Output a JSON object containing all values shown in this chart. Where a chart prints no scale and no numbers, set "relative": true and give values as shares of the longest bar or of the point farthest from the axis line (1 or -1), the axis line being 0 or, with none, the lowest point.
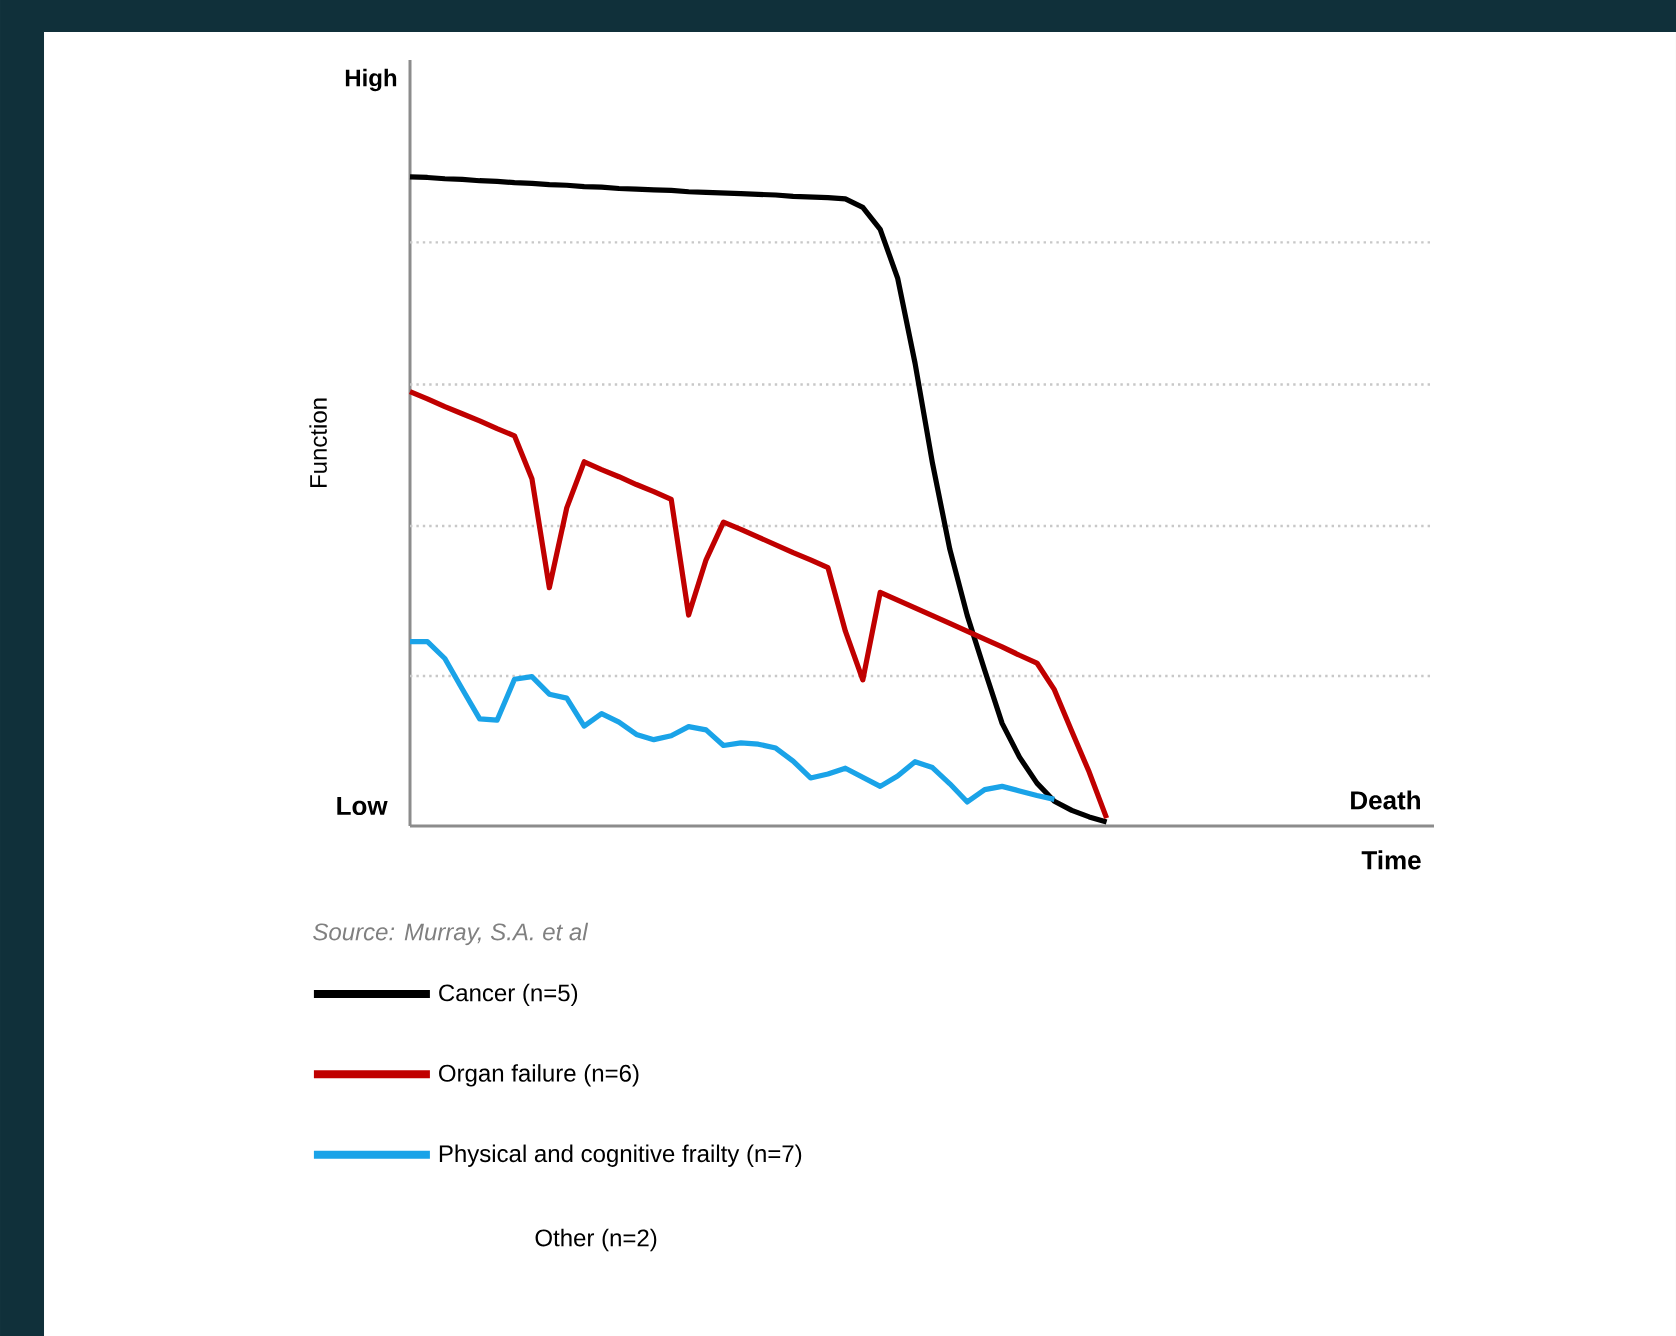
{
  "chart_data": {
    "type": "line",
    "relative": true,
    "ylabel": "Function",
    "legend": "bottom",
    "tick_labels": false,
    "line_style": "solid",
    "marker": "none",
    "annotations": [
      "High",
      "Low",
      "Death",
      "Source: Murray, S.A. et al",
      "Other (n=2)",
      "Time"
    ],
    "categories": [
      null,
      null,
      null,
      null,
      null,
      null,
      null,
      null,
      null,
      null,
      null,
      null,
      null,
      null,
      null,
      null,
      null,
      null,
      null,
      null,
      null,
      null,
      null,
      null,
      null,
      null,
      null,
      null,
      null,
      null,
      null,
      null,
      null,
      null,
      null,
      null,
      null,
      null,
      null,
      null,
      null
    ],
    "ref_lines": [
      {
        "axis": "y",
        "value": 0.899,
        "color": "#c8c8c8",
        "line_style": "dotted"
      },
      {
        "axis": "y",
        "value": 0.68,
        "color": "#c8c8c8",
        "line_style": "dotted"
      },
      {
        "axis": "y",
        "value": 0.462,
        "color": "#c8c8c8",
        "line_style": "dotted"
      },
      {
        "axis": "y",
        "value": 0.231,
        "color": "#c8c8c8",
        "line_style": "dotted"
      }
    ],
    "series": [
      {
        "name": "Cancer (n=5)",
        "color": "#000000",
        "values": [
          1,
          0.999,
          0.997,
          0.996,
          0.994,
          0.993,
          0.991,
          0.99,
          0.988,
          0.987,
          0.985,
          0.984,
          0.982,
          0.981,
          0.98,
          0.979,
          0.977,
          0.976,
          0.975,
          0.974,
          0.973,
          0.972,
          0.97,
          0.969,
          0.968,
          0.966,
          0.953,
          0.919,
          0.844,
          0.713,
          0.559,
          0.426,
          0.324,
          0.24,
          0.158,
          0.106,
          0.066,
          0.038,
          0.024,
          0.014,
          0.006
        ]
      },
      {
        "name": "Organ failure (n=6)",
        "color": "#c00000",
        "values": [
          0.669,
          0.658,
          0.646,
          0.635,
          0.624,
          0.612,
          0.601,
          0.535,
          0.367,
          0.49,
          0.561,
          0.549,
          0.538,
          0.526,
          0.515,
          0.503,
          0.325,
          0.41,
          0.468,
          0.457,
          0.445,
          0.433,
          0.421,
          0.41,
          0.398,
          0.3,
          0.225,
          0.36,
          0.348,
          0.336,
          0.324,
          0.312,
          0.3,
          0.288,
          0.276,
          0.263,
          0.251,
          0.21,
          0.146,
          0.083,
          0.012
        ]
      },
      {
        "name": "Physical and cognitive frailty (n=7)",
        "color": "#1aa3e8",
        "values": [
          0.284,
          0.284,
          0.258,
          0.211,
          0.165,
          0.163,
          0.226,
          0.23,
          0.203,
          0.197,
          0.154,
          0.173,
          0.16,
          0.141,
          0.133,
          0.139,
          0.153,
          0.148,
          0.124,
          0.128,
          0.126,
          0.12,
          0.1,
          0.074,
          0.08,
          0.089,
          0.075,
          0.061,
          0.077,
          0.099,
          0.09,
          0.065,
          0.037,
          0.056,
          0.061,
          0.054,
          0.047,
          0.041,
          null,
          null,
          null
        ]
      }
    ]
  }
}
